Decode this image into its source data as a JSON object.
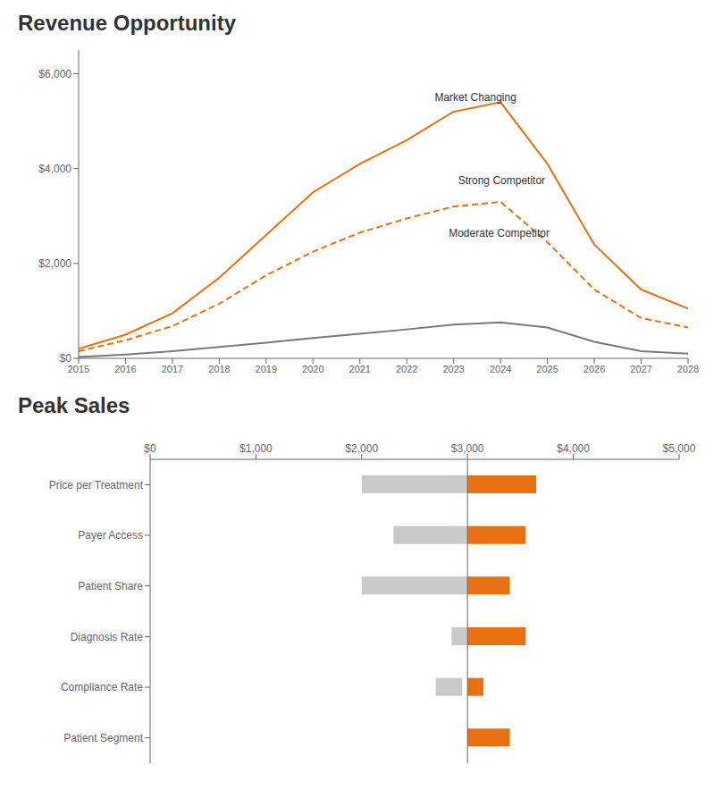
{
  "chart_data": [
    {
      "type": "line",
      "title": "Revenue Opportunity",
      "x": [
        2015,
        2016,
        2017,
        2018,
        2019,
        2020,
        2021,
        2022,
        2023,
        2024,
        2025,
        2026,
        2027,
        2028
      ],
      "xlim": [
        2015,
        2028
      ],
      "xticks": [
        2015,
        2016,
        2017,
        2018,
        2019,
        2020,
        2021,
        2022,
        2023,
        2024,
        2025,
        2026,
        2027,
        2028
      ],
      "ylim": [
        0,
        6500
      ],
      "yticks": [
        {
          "value": 0,
          "label": "$0"
        },
        {
          "value": 2000,
          "label": "$2,000"
        },
        {
          "value": 4000,
          "label": "$4,000"
        },
        {
          "value": 6000,
          "label": "$6,000"
        }
      ],
      "series": [
        {
          "name": "Market Changing",
          "color": "#e87010",
          "line_style": "solid",
          "values": [
            200,
            500,
            950,
            1700,
            2600,
            3500,
            4100,
            4600,
            5200,
            5400,
            4100,
            2400,
            1450,
            1050
          ]
        },
        {
          "name": "Strong Competitor",
          "color": "#e87010",
          "line_style": "dashed",
          "values": [
            150,
            380,
            680,
            1150,
            1750,
            2250,
            2650,
            2950,
            3200,
            3300,
            2450,
            1450,
            850,
            650
          ]
        },
        {
          "name": "Moderate Competitor",
          "color": "#787878",
          "line_style": "solid",
          "values": [
            30,
            80,
            150,
            240,
            330,
            430,
            520,
            610,
            710,
            760,
            650,
            350,
            150,
            100
          ]
        }
      ],
      "annotations": [
        {
          "text": "Market Changing",
          "x": 2022.5,
          "y": 5500
        },
        {
          "text": "Strong Competitor",
          "x": 2023.0,
          "y": 3750
        },
        {
          "text": "Moderate Competitor",
          "x": 2022.8,
          "y": 2650
        }
      ]
    },
    {
      "type": "bar",
      "orientation": "horizontal",
      "title": "Peak Sales",
      "categories": [
        "Price per Treatment",
        "Payer Access",
        "Patient Share",
        "Diagnosis Rate",
        "Compliance Rate",
        "Patient Segment"
      ],
      "series": [
        {
          "color": "#c8c8c8",
          "start": [
            2000,
            2300,
            2000,
            2850,
            2700,
            3000
          ],
          "values": [
            1000,
            700,
            1000,
            150,
            250,
            0
          ]
        },
        {
          "color": "#e87010",
          "start": [
            3000,
            3000,
            3000,
            3000,
            3000,
            3000
          ],
          "values": [
            650,
            550,
            400,
            550,
            150,
            400
          ]
        }
      ],
      "xlim": [
        0,
        5000
      ],
      "xticks": [
        {
          "value": 0,
          "label": "$0"
        },
        {
          "value": 1000,
          "label": "$1,000"
        },
        {
          "value": 2000,
          "label": "$2,000"
        },
        {
          "value": 3000,
          "label": "$3,000"
        },
        {
          "value": 4000,
          "label": "$4,000"
        },
        {
          "value": 5000,
          "label": "$5,000"
        }
      ],
      "reference_line": {
        "x": 3000,
        "color": "#666666"
      }
    }
  ]
}
